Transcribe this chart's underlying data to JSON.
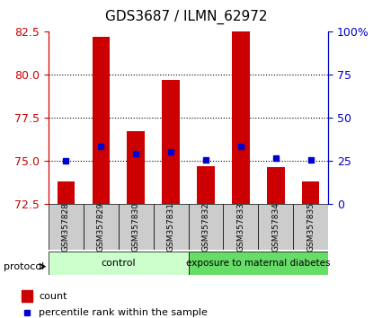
{
  "title": "GDS3687 / ILMN_62972",
  "samples": [
    "GSM357828",
    "GSM357829",
    "GSM357830",
    "GSM357831",
    "GSM357832",
    "GSM357833",
    "GSM357834",
    "GSM357835"
  ],
  "bar_bottoms": [
    72.5,
    72.5,
    72.5,
    72.5,
    72.5,
    72.5,
    72.5,
    72.5
  ],
  "bar_tops": [
    73.8,
    82.2,
    76.7,
    79.7,
    74.7,
    82.5,
    74.6,
    73.8
  ],
  "percentile_ranks": [
    25.0,
    33.0,
    29.0,
    30.0,
    25.5,
    33.0,
    26.5,
    25.5
  ],
  "ylim_left": [
    72.5,
    82.5
  ],
  "ylim_right": [
    0,
    100
  ],
  "yticks_left": [
    72.5,
    75.0,
    77.5,
    80.0,
    82.5
  ],
  "yticks_right": [
    0,
    25,
    50,
    75,
    100
  ],
  "ytick_labels_right": [
    "0",
    "25",
    "50",
    "75",
    "100%"
  ],
  "control_label": "control",
  "diabetes_label": "exposure to maternal diabetes",
  "protocol_label": "protocol",
  "legend_count": "count",
  "legend_percentile": "percentile rank within the sample",
  "bar_color": "#cc0000",
  "percentile_color": "#0000cc",
  "control_bg": "#ccffcc",
  "diabetes_bg": "#66dd66",
  "xlabel_area_bg": "#cccccc",
  "title_color": "#000000",
  "left_axis_color": "#cc0000",
  "right_axis_color": "#0000cc",
  "grid_color": "#000000",
  "dotted_lines": [
    75.0,
    77.5,
    80.0
  ]
}
